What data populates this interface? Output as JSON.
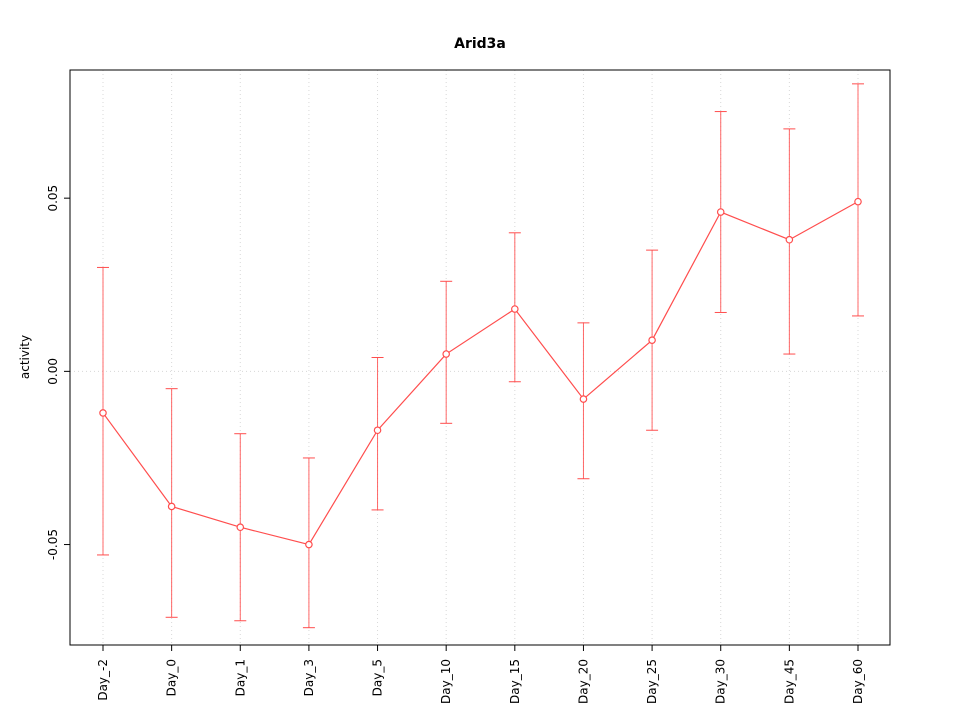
{
  "figure": {
    "background": "#ffffff"
  },
  "chart_data": {
    "type": "line",
    "title": "Arid3a",
    "xlabel": "",
    "ylabel": "activity",
    "categories": [
      "Day_-2",
      "Day_0",
      "Day_1",
      "Day_3",
      "Day_5",
      "Day_10",
      "Day_15",
      "Day_20",
      "Day_25",
      "Day_30",
      "Day_45",
      "Day_60"
    ],
    "values": [
      -0.012,
      -0.039,
      -0.045,
      -0.05,
      -0.017,
      0.005,
      0.018,
      -0.008,
      0.009,
      0.046,
      0.038,
      0.049
    ],
    "error_low": [
      -0.053,
      -0.071,
      -0.072,
      -0.074,
      -0.04,
      -0.015,
      -0.003,
      -0.031,
      -0.017,
      0.017,
      0.005,
      0.016
    ],
    "error_high": [
      0.03,
      -0.005,
      -0.018,
      -0.025,
      0.004,
      0.026,
      0.04,
      0.014,
      0.035,
      0.075,
      0.07,
      0.083
    ],
    "yticks": [
      -0.05,
      0,
      0.05
    ],
    "ytick_labels": [
      "-0.05",
      "0.00",
      "0.05"
    ],
    "ylim": [
      -0.079,
      0.087
    ],
    "grid": true,
    "legend": "none",
    "series_color": "#ff4d4d",
    "grid_color": "#d8d8d8",
    "axis_color": "#000000"
  }
}
